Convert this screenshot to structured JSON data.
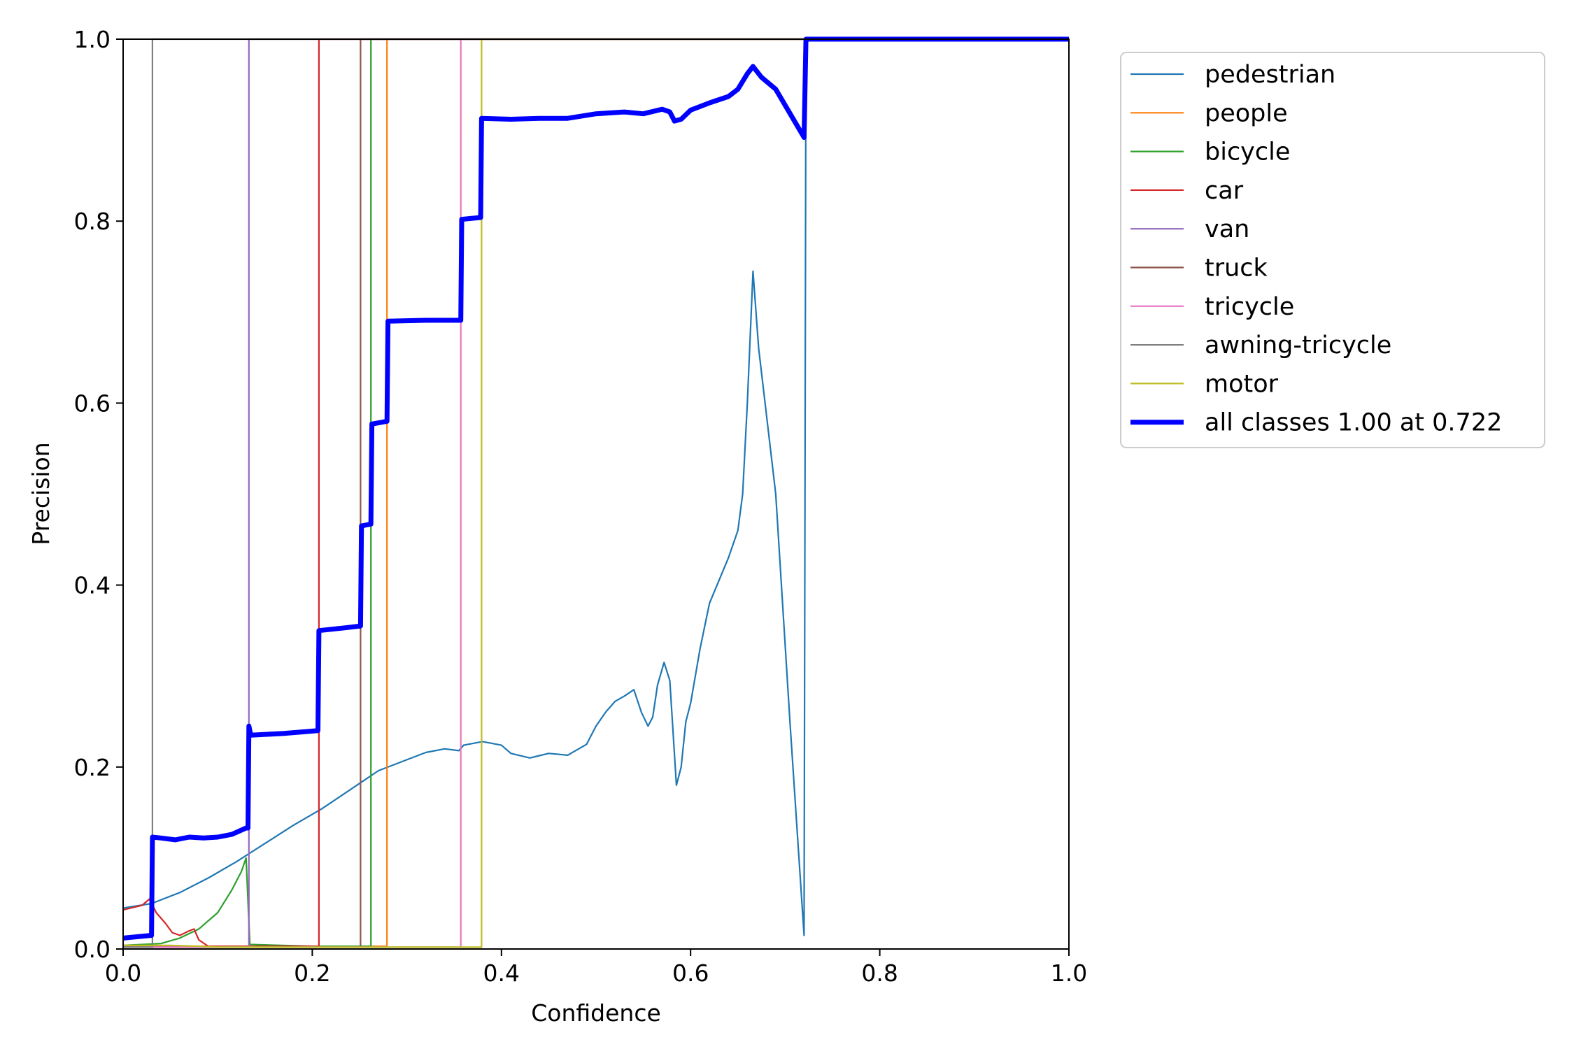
{
  "chart_data": {
    "type": "line",
    "title": "",
    "xlabel": "Confidence",
    "ylabel": "Precision",
    "xlim": [
      0,
      1
    ],
    "ylim": [
      0,
      1
    ],
    "xticks": [
      "0.0",
      "0.2",
      "0.4",
      "0.6",
      "0.8",
      "1.0"
    ],
    "yticks": [
      "0.0",
      "0.2",
      "0.4",
      "0.6",
      "0.8",
      "1.0"
    ],
    "grid": false,
    "legend_position": "outside-top-right",
    "series": [
      {
        "name": "pedestrian",
        "color": "#1f77b4",
        "width": 2.2,
        "points": [
          [
            0.0,
            0.045
          ],
          [
            0.03,
            0.05
          ],
          [
            0.06,
            0.062
          ],
          [
            0.09,
            0.078
          ],
          [
            0.12,
            0.096
          ],
          [
            0.15,
            0.116
          ],
          [
            0.18,
            0.136
          ],
          [
            0.21,
            0.154
          ],
          [
            0.24,
            0.175
          ],
          [
            0.27,
            0.196
          ],
          [
            0.3,
            0.208
          ],
          [
            0.32,
            0.216
          ],
          [
            0.34,
            0.22
          ],
          [
            0.355,
            0.218
          ],
          [
            0.36,
            0.224
          ],
          [
            0.38,
            0.228
          ],
          [
            0.4,
            0.224
          ],
          [
            0.41,
            0.215
          ],
          [
            0.43,
            0.21
          ],
          [
            0.45,
            0.215
          ],
          [
            0.47,
            0.213
          ],
          [
            0.49,
            0.225
          ],
          [
            0.5,
            0.245
          ],
          [
            0.51,
            0.26
          ],
          [
            0.52,
            0.272
          ],
          [
            0.53,
            0.278
          ],
          [
            0.54,
            0.285
          ],
          [
            0.548,
            0.26
          ],
          [
            0.555,
            0.245
          ],
          [
            0.56,
            0.255
          ],
          [
            0.565,
            0.29
          ],
          [
            0.572,
            0.315
          ],
          [
            0.578,
            0.295
          ],
          [
            0.585,
            0.18
          ],
          [
            0.59,
            0.2
          ],
          [
            0.595,
            0.25
          ],
          [
            0.6,
            0.27
          ],
          [
            0.61,
            0.33
          ],
          [
            0.62,
            0.38
          ],
          [
            0.64,
            0.43
          ],
          [
            0.65,
            0.46
          ],
          [
            0.655,
            0.5
          ],
          [
            0.66,
            0.6
          ],
          [
            0.666,
            0.745
          ],
          [
            0.672,
            0.66
          ],
          [
            0.69,
            0.5
          ],
          [
            0.705,
            0.25
          ],
          [
            0.72,
            0.015
          ],
          [
            0.722,
            1.0
          ],
          [
            1.0,
            1.0
          ]
        ]
      },
      {
        "name": "people",
        "color": "#ff7f0e",
        "width": 2.2,
        "points": [
          [
            0.0,
            0.003
          ],
          [
            0.279,
            0.003
          ],
          [
            0.279,
            1.0
          ],
          [
            1.0,
            1.0
          ]
        ]
      },
      {
        "name": "bicycle",
        "color": "#2ca02c",
        "width": 2.2,
        "points": [
          [
            0.0,
            0.004
          ],
          [
            0.04,
            0.006
          ],
          [
            0.06,
            0.012
          ],
          [
            0.08,
            0.022
          ],
          [
            0.1,
            0.04
          ],
          [
            0.115,
            0.065
          ],
          [
            0.125,
            0.085
          ],
          [
            0.13,
            0.1
          ],
          [
            0.134,
            0.005
          ],
          [
            0.2,
            0.003
          ],
          [
            0.262,
            0.003
          ],
          [
            0.262,
            1.0
          ],
          [
            1.0,
            1.0
          ]
        ]
      },
      {
        "name": "car",
        "color": "#d62728",
        "width": 2.2,
        "points": [
          [
            0.0,
            0.043
          ],
          [
            0.02,
            0.048
          ],
          [
            0.028,
            0.055
          ],
          [
            0.035,
            0.04
          ],
          [
            0.045,
            0.028
          ],
          [
            0.052,
            0.018
          ],
          [
            0.06,
            0.015
          ],
          [
            0.07,
            0.02
          ],
          [
            0.075,
            0.022
          ],
          [
            0.08,
            0.01
          ],
          [
            0.09,
            0.003
          ],
          [
            0.207,
            0.003
          ],
          [
            0.207,
            1.0
          ],
          [
            1.0,
            1.0
          ]
        ]
      },
      {
        "name": "van",
        "color": "#9467bd",
        "width": 2.2,
        "points": [
          [
            0.0,
            0.002
          ],
          [
            0.133,
            0.002
          ],
          [
            0.133,
            1.0
          ],
          [
            1.0,
            1.0
          ]
        ]
      },
      {
        "name": "truck",
        "color": "#8c564b",
        "width": 2.2,
        "points": [
          [
            0.0,
            0.002
          ],
          [
            0.251,
            0.002
          ],
          [
            0.251,
            1.0
          ],
          [
            1.0,
            1.0
          ]
        ]
      },
      {
        "name": "tricycle",
        "color": "#e377c2",
        "width": 2.2,
        "points": [
          [
            0.0,
            0.002
          ],
          [
            0.357,
            0.002
          ],
          [
            0.357,
            1.0
          ],
          [
            1.0,
            1.0
          ]
        ]
      },
      {
        "name": "awning-tricycle",
        "color": "#7f7f7f",
        "width": 2.2,
        "points": [
          [
            0.0,
            0.002
          ],
          [
            0.031,
            0.002
          ],
          [
            0.031,
            1.0
          ],
          [
            1.0,
            1.0
          ]
        ]
      },
      {
        "name": "motor",
        "color": "#bcbd22",
        "width": 2.2,
        "points": [
          [
            0.0,
            0.004
          ],
          [
            0.05,
            0.004
          ],
          [
            0.08,
            0.003
          ],
          [
            0.1,
            0.002
          ],
          [
            0.379,
            0.002
          ],
          [
            0.379,
            1.0
          ],
          [
            1.0,
            1.0
          ]
        ]
      },
      {
        "name": "all classes 1.00 at 0.722",
        "color": "#0000ff",
        "width": 7,
        "points": [
          [
            0.0,
            0.012
          ],
          [
            0.03,
            0.015
          ],
          [
            0.031,
            0.123
          ],
          [
            0.04,
            0.122
          ],
          [
            0.055,
            0.12
          ],
          [
            0.07,
            0.123
          ],
          [
            0.085,
            0.122
          ],
          [
            0.1,
            0.123
          ],
          [
            0.115,
            0.126
          ],
          [
            0.13,
            0.133
          ],
          [
            0.132,
            0.133
          ],
          [
            0.133,
            0.245
          ],
          [
            0.135,
            0.235
          ],
          [
            0.17,
            0.237
          ],
          [
            0.206,
            0.24
          ],
          [
            0.207,
            0.35
          ],
          [
            0.235,
            0.353
          ],
          [
            0.251,
            0.355
          ],
          [
            0.252,
            0.465
          ],
          [
            0.262,
            0.467
          ],
          [
            0.263,
            0.577
          ],
          [
            0.279,
            0.58
          ],
          [
            0.28,
            0.69
          ],
          [
            0.32,
            0.691
          ],
          [
            0.357,
            0.691
          ],
          [
            0.358,
            0.802
          ],
          [
            0.378,
            0.804
          ],
          [
            0.379,
            0.913
          ],
          [
            0.41,
            0.912
          ],
          [
            0.44,
            0.913
          ],
          [
            0.47,
            0.913
          ],
          [
            0.5,
            0.918
          ],
          [
            0.53,
            0.92
          ],
          [
            0.55,
            0.918
          ],
          [
            0.57,
            0.923
          ],
          [
            0.578,
            0.92
          ],
          [
            0.583,
            0.91
          ],
          [
            0.59,
            0.912
          ],
          [
            0.6,
            0.922
          ],
          [
            0.62,
            0.93
          ],
          [
            0.64,
            0.937
          ],
          [
            0.65,
            0.945
          ],
          [
            0.66,
            0.962
          ],
          [
            0.666,
            0.97
          ],
          [
            0.675,
            0.958
          ],
          [
            0.69,
            0.945
          ],
          [
            0.72,
            0.892
          ],
          [
            0.722,
            1.0
          ],
          [
            1.0,
            1.0
          ]
        ]
      }
    ]
  }
}
